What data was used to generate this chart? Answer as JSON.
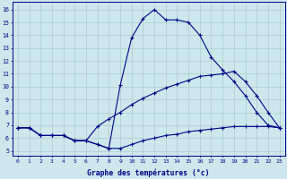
{
  "xlabel": "Graphe des températures (°c)",
  "bg_color": "#cce8ec",
  "line_color": "#00008b",
  "grid_color": "#aacccc",
  "x_ticks": [
    0,
    1,
    2,
    3,
    4,
    5,
    6,
    7,
    8,
    9,
    10,
    11,
    12,
    13,
    14,
    15,
    16,
    17,
    18,
    19,
    20,
    21,
    22,
    23
  ],
  "y_ticks": [
    5,
    6,
    7,
    8,
    9,
    10,
    11,
    12,
    13,
    14,
    15,
    16
  ],
  "line1_x": [
    0,
    1,
    2,
    3,
    4,
    5,
    6,
    7,
    8,
    9,
    10,
    11,
    12,
    13,
    14,
    15,
    16,
    17,
    18,
    19,
    20,
    21,
    22,
    23
  ],
  "line1_y": [
    6.8,
    6.8,
    6.2,
    6.2,
    6.2,
    5.8,
    5.8,
    5.5,
    5.2,
    10.1,
    13.8,
    15.3,
    16.0,
    15.2,
    15.2,
    15.0,
    14.0,
    12.3,
    11.3,
    10.4,
    9.3,
    8.0,
    7.0,
    6.8
  ],
  "line2_x": [
    0,
    1,
    2,
    3,
    4,
    5,
    6,
    7,
    8,
    9,
    10,
    11,
    12,
    13,
    14,
    15,
    16,
    17,
    18,
    19,
    20,
    21,
    22,
    23
  ],
  "line2_y": [
    6.8,
    6.8,
    6.2,
    6.2,
    6.2,
    5.8,
    5.8,
    6.9,
    7.5,
    8.0,
    8.6,
    9.1,
    9.5,
    9.9,
    10.2,
    10.5,
    10.8,
    10.9,
    11.0,
    11.2,
    10.4,
    9.3,
    8.0,
    6.8
  ],
  "line3_x": [
    0,
    1,
    2,
    3,
    4,
    5,
    6,
    7,
    8,
    9,
    10,
    11,
    12,
    13,
    14,
    15,
    16,
    17,
    18,
    19,
    20,
    21,
    22,
    23
  ],
  "line3_y": [
    6.8,
    6.8,
    6.2,
    6.2,
    6.2,
    5.8,
    5.8,
    5.5,
    5.2,
    5.2,
    5.5,
    5.8,
    6.0,
    6.2,
    6.3,
    6.5,
    6.6,
    6.7,
    6.8,
    6.9,
    6.9,
    6.9,
    6.9,
    6.8
  ]
}
